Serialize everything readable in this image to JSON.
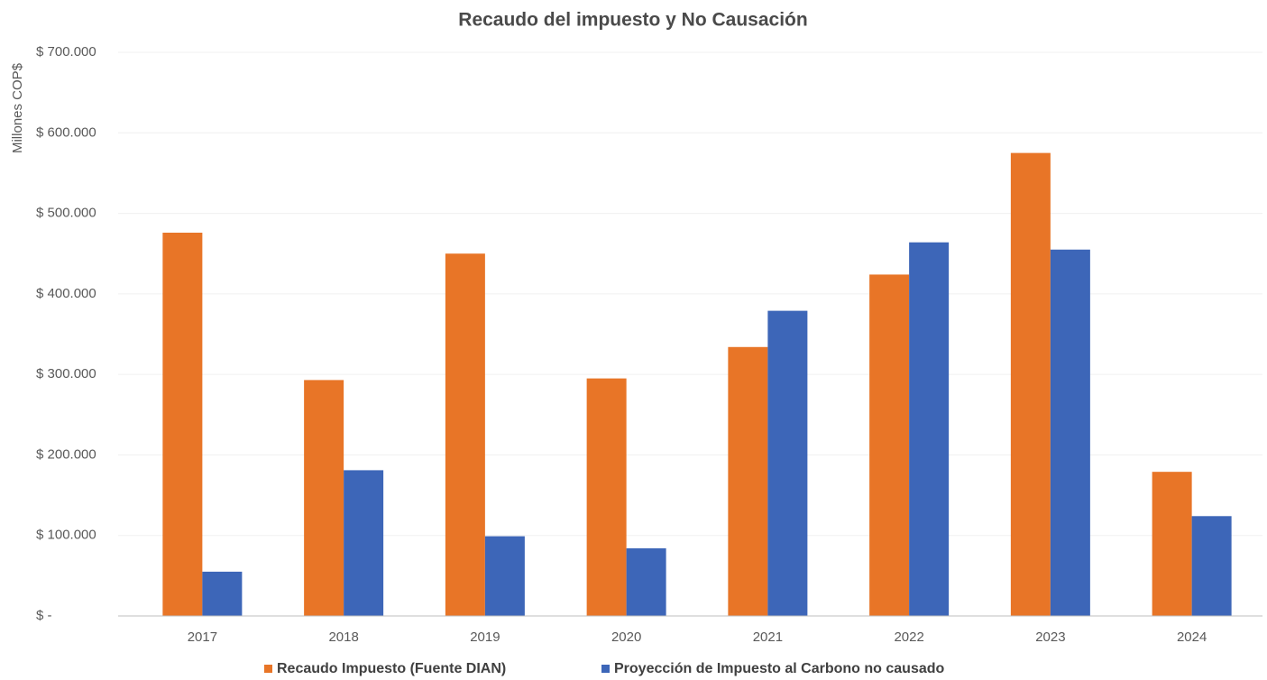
{
  "chart_data": {
    "type": "bar",
    "title": "Recaudo del impuesto y No Causación",
    "y_label": "Millones COP$",
    "categories": [
      "2017",
      "2018",
      "2019",
      "2020",
      "2021",
      "2022",
      "2023",
      "2024"
    ],
    "series": [
      {
        "name": "Recaudo Impuesto (Fuente DIAN)",
        "color": "#e87527",
        "values": [
          476000,
          293000,
          450000,
          295000,
          334000,
          424000,
          575000,
          179000
        ]
      },
      {
        "name": "Proyección de Impuesto al Carbono no causado",
        "color": "#3d66b8",
        "values": [
          55000,
          181000,
          99000,
          84000,
          379000,
          464000,
          455000,
          124000
        ]
      }
    ],
    "ylim": [
      0,
      700000
    ],
    "yticks": [
      {
        "value": 0,
        "label": "$ -"
      },
      {
        "value": 100000,
        "label": "$ 100.000"
      },
      {
        "value": 200000,
        "label": "$ 200.000"
      },
      {
        "value": 300000,
        "label": "$ 300.000"
      },
      {
        "value": 400000,
        "label": "$ 400.000"
      },
      {
        "value": 500000,
        "label": "$ 500.000"
      },
      {
        "value": 600000,
        "label": "$ 600.000"
      },
      {
        "value": 700000,
        "label": "$ 700.000"
      }
    ],
    "grid": true,
    "legend": "bottom"
  }
}
